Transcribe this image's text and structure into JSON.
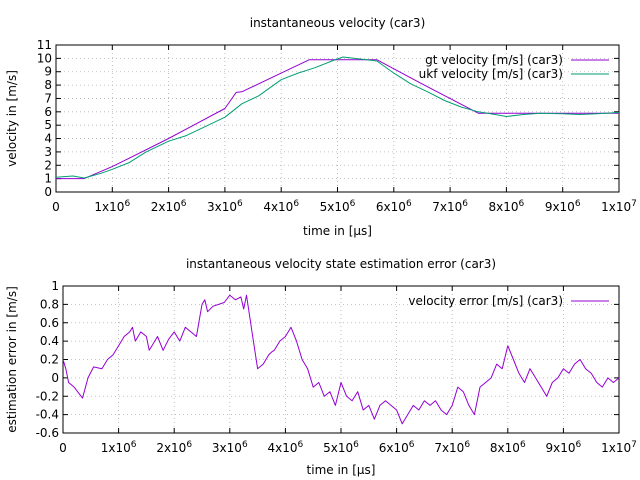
{
  "chart_data": [
    {
      "type": "line",
      "title": "instantaneous velocity (car3)",
      "xlabel": "time in [µs]",
      "ylabel": "velocity in [m/s]",
      "xlim": [
        0,
        10000000
      ],
      "ylim": [
        0,
        11
      ],
      "grid": true,
      "legend_position": "top-right",
      "x_ticks": [
        {
          "value": 0,
          "mant": "0",
          "exp": ""
        },
        {
          "value": 1000000,
          "mant": "1x10",
          "exp": "6"
        },
        {
          "value": 2000000,
          "mant": "2x10",
          "exp": "6"
        },
        {
          "value": 3000000,
          "mant": "3x10",
          "exp": "6"
        },
        {
          "value": 4000000,
          "mant": "4x10",
          "exp": "6"
        },
        {
          "value": 5000000,
          "mant": "5x10",
          "exp": "6"
        },
        {
          "value": 6000000,
          "mant": "6x10",
          "exp": "6"
        },
        {
          "value": 7000000,
          "mant": "7x10",
          "exp": "6"
        },
        {
          "value": 8000000,
          "mant": "8x10",
          "exp": "6"
        },
        {
          "value": 9000000,
          "mant": "9x10",
          "exp": "6"
        },
        {
          "value": 10000000,
          "mant": "1x10",
          "exp": "7"
        }
      ],
      "y_ticks": [
        {
          "value": 0,
          "label": "0"
        },
        {
          "value": 1,
          "label": "1"
        },
        {
          "value": 2,
          "label": "2"
        },
        {
          "value": 3,
          "label": "3"
        },
        {
          "value": 4,
          "label": "4"
        },
        {
          "value": 5,
          "label": "5"
        },
        {
          "value": 6,
          "label": "6"
        },
        {
          "value": 7,
          "label": "7"
        },
        {
          "value": 8,
          "label": "8"
        },
        {
          "value": 9,
          "label": "9"
        },
        {
          "value": 10,
          "label": "10"
        },
        {
          "value": 11,
          "label": "11"
        }
      ],
      "series": [
        {
          "name": "gt velocity [m/s] (car3)",
          "color": "#9400d3",
          "x": [
            0,
            500000,
            1000000,
            2000000,
            3000000,
            3200000,
            3300000,
            4000000,
            4500000,
            5700000,
            6500000,
            7500000,
            8000000,
            10000000
          ],
          "y": [
            1.0,
            1.0,
            1.9,
            4.0,
            6.25,
            7.45,
            7.5,
            8.9,
            9.9,
            9.9,
            8.1,
            5.9,
            5.9,
            5.9
          ]
        },
        {
          "name": "ukf velocity [m/s] (car3)",
          "color": "#009e73",
          "x": [
            0,
            300000,
            500000,
            800000,
            1000000,
            1300000,
            1600000,
            2000000,
            2300000,
            2600000,
            3000000,
            3300000,
            3600000,
            4000000,
            4300000,
            4600000,
            4900000,
            5100000,
            5400000,
            5700000,
            6000000,
            6300000,
            6600000,
            6900000,
            7200000,
            7500000,
            7800000,
            8000000,
            8300000,
            8600000,
            9000000,
            9300000,
            9600000,
            10000000
          ],
          "y": [
            1.1,
            1.2,
            1.05,
            1.4,
            1.7,
            2.2,
            3.0,
            3.8,
            4.2,
            4.8,
            5.6,
            6.6,
            7.2,
            8.4,
            8.9,
            9.3,
            9.8,
            10.1,
            9.95,
            9.8,
            8.9,
            8.1,
            7.5,
            6.85,
            6.35,
            6.0,
            5.8,
            5.65,
            5.8,
            5.9,
            5.85,
            5.8,
            5.85,
            5.95
          ]
        }
      ]
    },
    {
      "type": "line",
      "title": "instantaneous velocity state estimation error (car3)",
      "xlabel": "time in [µs]",
      "ylabel": "estimation error in [m/s]",
      "xlim": [
        0,
        10000000
      ],
      "ylim": [
        -0.6,
        1
      ],
      "grid": true,
      "legend_position": "top-right",
      "x_ticks": [
        {
          "value": 0,
          "mant": "0",
          "exp": ""
        },
        {
          "value": 1000000,
          "mant": "1x10",
          "exp": "6"
        },
        {
          "value": 2000000,
          "mant": "2x10",
          "exp": "6"
        },
        {
          "value": 3000000,
          "mant": "3x10",
          "exp": "6"
        },
        {
          "value": 4000000,
          "mant": "4x10",
          "exp": "6"
        },
        {
          "value": 5000000,
          "mant": "5x10",
          "exp": "6"
        },
        {
          "value": 6000000,
          "mant": "6x10",
          "exp": "6"
        },
        {
          "value": 7000000,
          "mant": "7x10",
          "exp": "6"
        },
        {
          "value": 8000000,
          "mant": "8x10",
          "exp": "6"
        },
        {
          "value": 9000000,
          "mant": "9x10",
          "exp": "6"
        },
        {
          "value": 10000000,
          "mant": "1x10",
          "exp": "7"
        }
      ],
      "y_ticks": [
        {
          "value": -0.6,
          "label": "-0.6"
        },
        {
          "value": -0.4,
          "label": "-0.4"
        },
        {
          "value": -0.2,
          "label": "-0.2"
        },
        {
          "value": 0,
          "label": "0"
        },
        {
          "value": 0.2,
          "label": "0.2"
        },
        {
          "value": 0.4,
          "label": "0.4"
        },
        {
          "value": 0.6,
          "label": "0.6"
        },
        {
          "value": 0.8,
          "label": "0.8"
        },
        {
          "value": 1,
          "label": "1"
        }
      ],
      "series": [
        {
          "name": "velocity error [m/s] (car3)",
          "color": "#9400d3",
          "x": [
            0,
            50000,
            100000,
            200000,
            300000,
            350000,
            450000,
            550000,
            700000,
            800000,
            900000,
            1000000,
            1100000,
            1200000,
            1250000,
            1300000,
            1400000,
            1500000,
            1550000,
            1600000,
            1700000,
            1800000,
            1900000,
            2000000,
            2100000,
            2200000,
            2300000,
            2400000,
            2500000,
            2550000,
            2600000,
            2700000,
            2800000,
            2900000,
            3000000,
            3100000,
            3200000,
            3250000,
            3300000,
            3400000,
            3500000,
            3600000,
            3700000,
            3750000,
            3800000,
            3900000,
            4000000,
            4100000,
            4200000,
            4300000,
            4400000,
            4500000,
            4600000,
            4700000,
            4800000,
            4900000,
            5000000,
            5100000,
            5200000,
            5300000,
            5400000,
            5500000,
            5600000,
            5700000,
            5800000,
            5900000,
            6000000,
            6100000,
            6200000,
            6300000,
            6400000,
            6500000,
            6600000,
            6700000,
            6800000,
            6900000,
            7000000,
            7100000,
            7200000,
            7300000,
            7400000,
            7500000,
            7600000,
            7700000,
            7800000,
            7900000,
            8000000,
            8100000,
            8200000,
            8300000,
            8400000,
            8500000,
            8600000,
            8700000,
            8800000,
            8900000,
            9000000,
            9100000,
            9200000,
            9300000,
            9400000,
            9500000,
            9600000,
            9700000,
            9800000,
            9900000,
            10000000
          ],
          "y": [
            0.2,
            0.1,
            -0.05,
            -0.1,
            -0.18,
            -0.22,
            0.0,
            0.12,
            0.1,
            0.2,
            0.25,
            0.35,
            0.45,
            0.5,
            0.55,
            0.4,
            0.5,
            0.45,
            0.3,
            0.35,
            0.45,
            0.3,
            0.42,
            0.5,
            0.4,
            0.55,
            0.5,
            0.45,
            0.8,
            0.85,
            0.72,
            0.78,
            0.8,
            0.82,
            0.9,
            0.85,
            0.88,
            0.75,
            0.9,
            0.5,
            0.1,
            0.15,
            0.25,
            0.28,
            0.3,
            0.4,
            0.45,
            0.55,
            0.4,
            0.2,
            0.1,
            -0.1,
            -0.05,
            -0.2,
            -0.15,
            -0.3,
            -0.05,
            -0.2,
            -0.25,
            -0.15,
            -0.35,
            -0.3,
            -0.45,
            -0.3,
            -0.25,
            -0.3,
            -0.35,
            -0.5,
            -0.4,
            -0.3,
            -0.35,
            -0.25,
            -0.3,
            -0.25,
            -0.35,
            -0.4,
            -0.3,
            -0.1,
            -0.15,
            -0.3,
            -0.4,
            -0.1,
            -0.05,
            0.0,
            0.15,
            0.1,
            0.35,
            0.2,
            0.05,
            -0.05,
            0.1,
            0.0,
            -0.1,
            -0.2,
            -0.05,
            0.0,
            0.1,
            0.05,
            0.15,
            0.2,
            0.1,
            0.05,
            -0.05,
            -0.1,
            0.0,
            -0.05,
            0.0
          ]
        }
      ]
    }
  ]
}
